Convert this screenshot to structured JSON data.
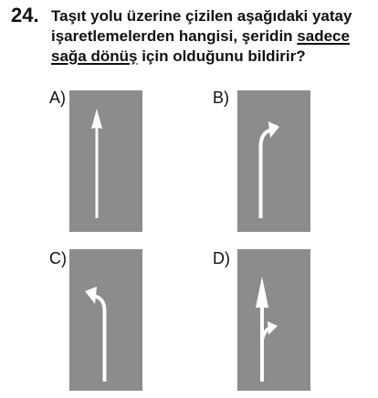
{
  "question": {
    "number": "24.",
    "text_part1": "Taşıt yolu üzerine çizilen aşağıdaki yatay işaretlemelerden hangisi, şeridin ",
    "text_underlined_1": "sadece",
    "text_space": " ",
    "text_underlined_2": "sağa dönüş",
    "text_part2": " için olduğunu bildirir?"
  },
  "options": [
    {
      "label": "A)",
      "marking": "straight-arrow"
    },
    {
      "label": "B)",
      "marking": "right-turn-arrow"
    },
    {
      "label": "C)",
      "marking": "left-turn-arrow"
    },
    {
      "label": "D)",
      "marking": "straight-and-right-arrow"
    }
  ],
  "colors": {
    "lane": "#8c8c8c",
    "marking": "#ffffff",
    "text": "#111111"
  }
}
